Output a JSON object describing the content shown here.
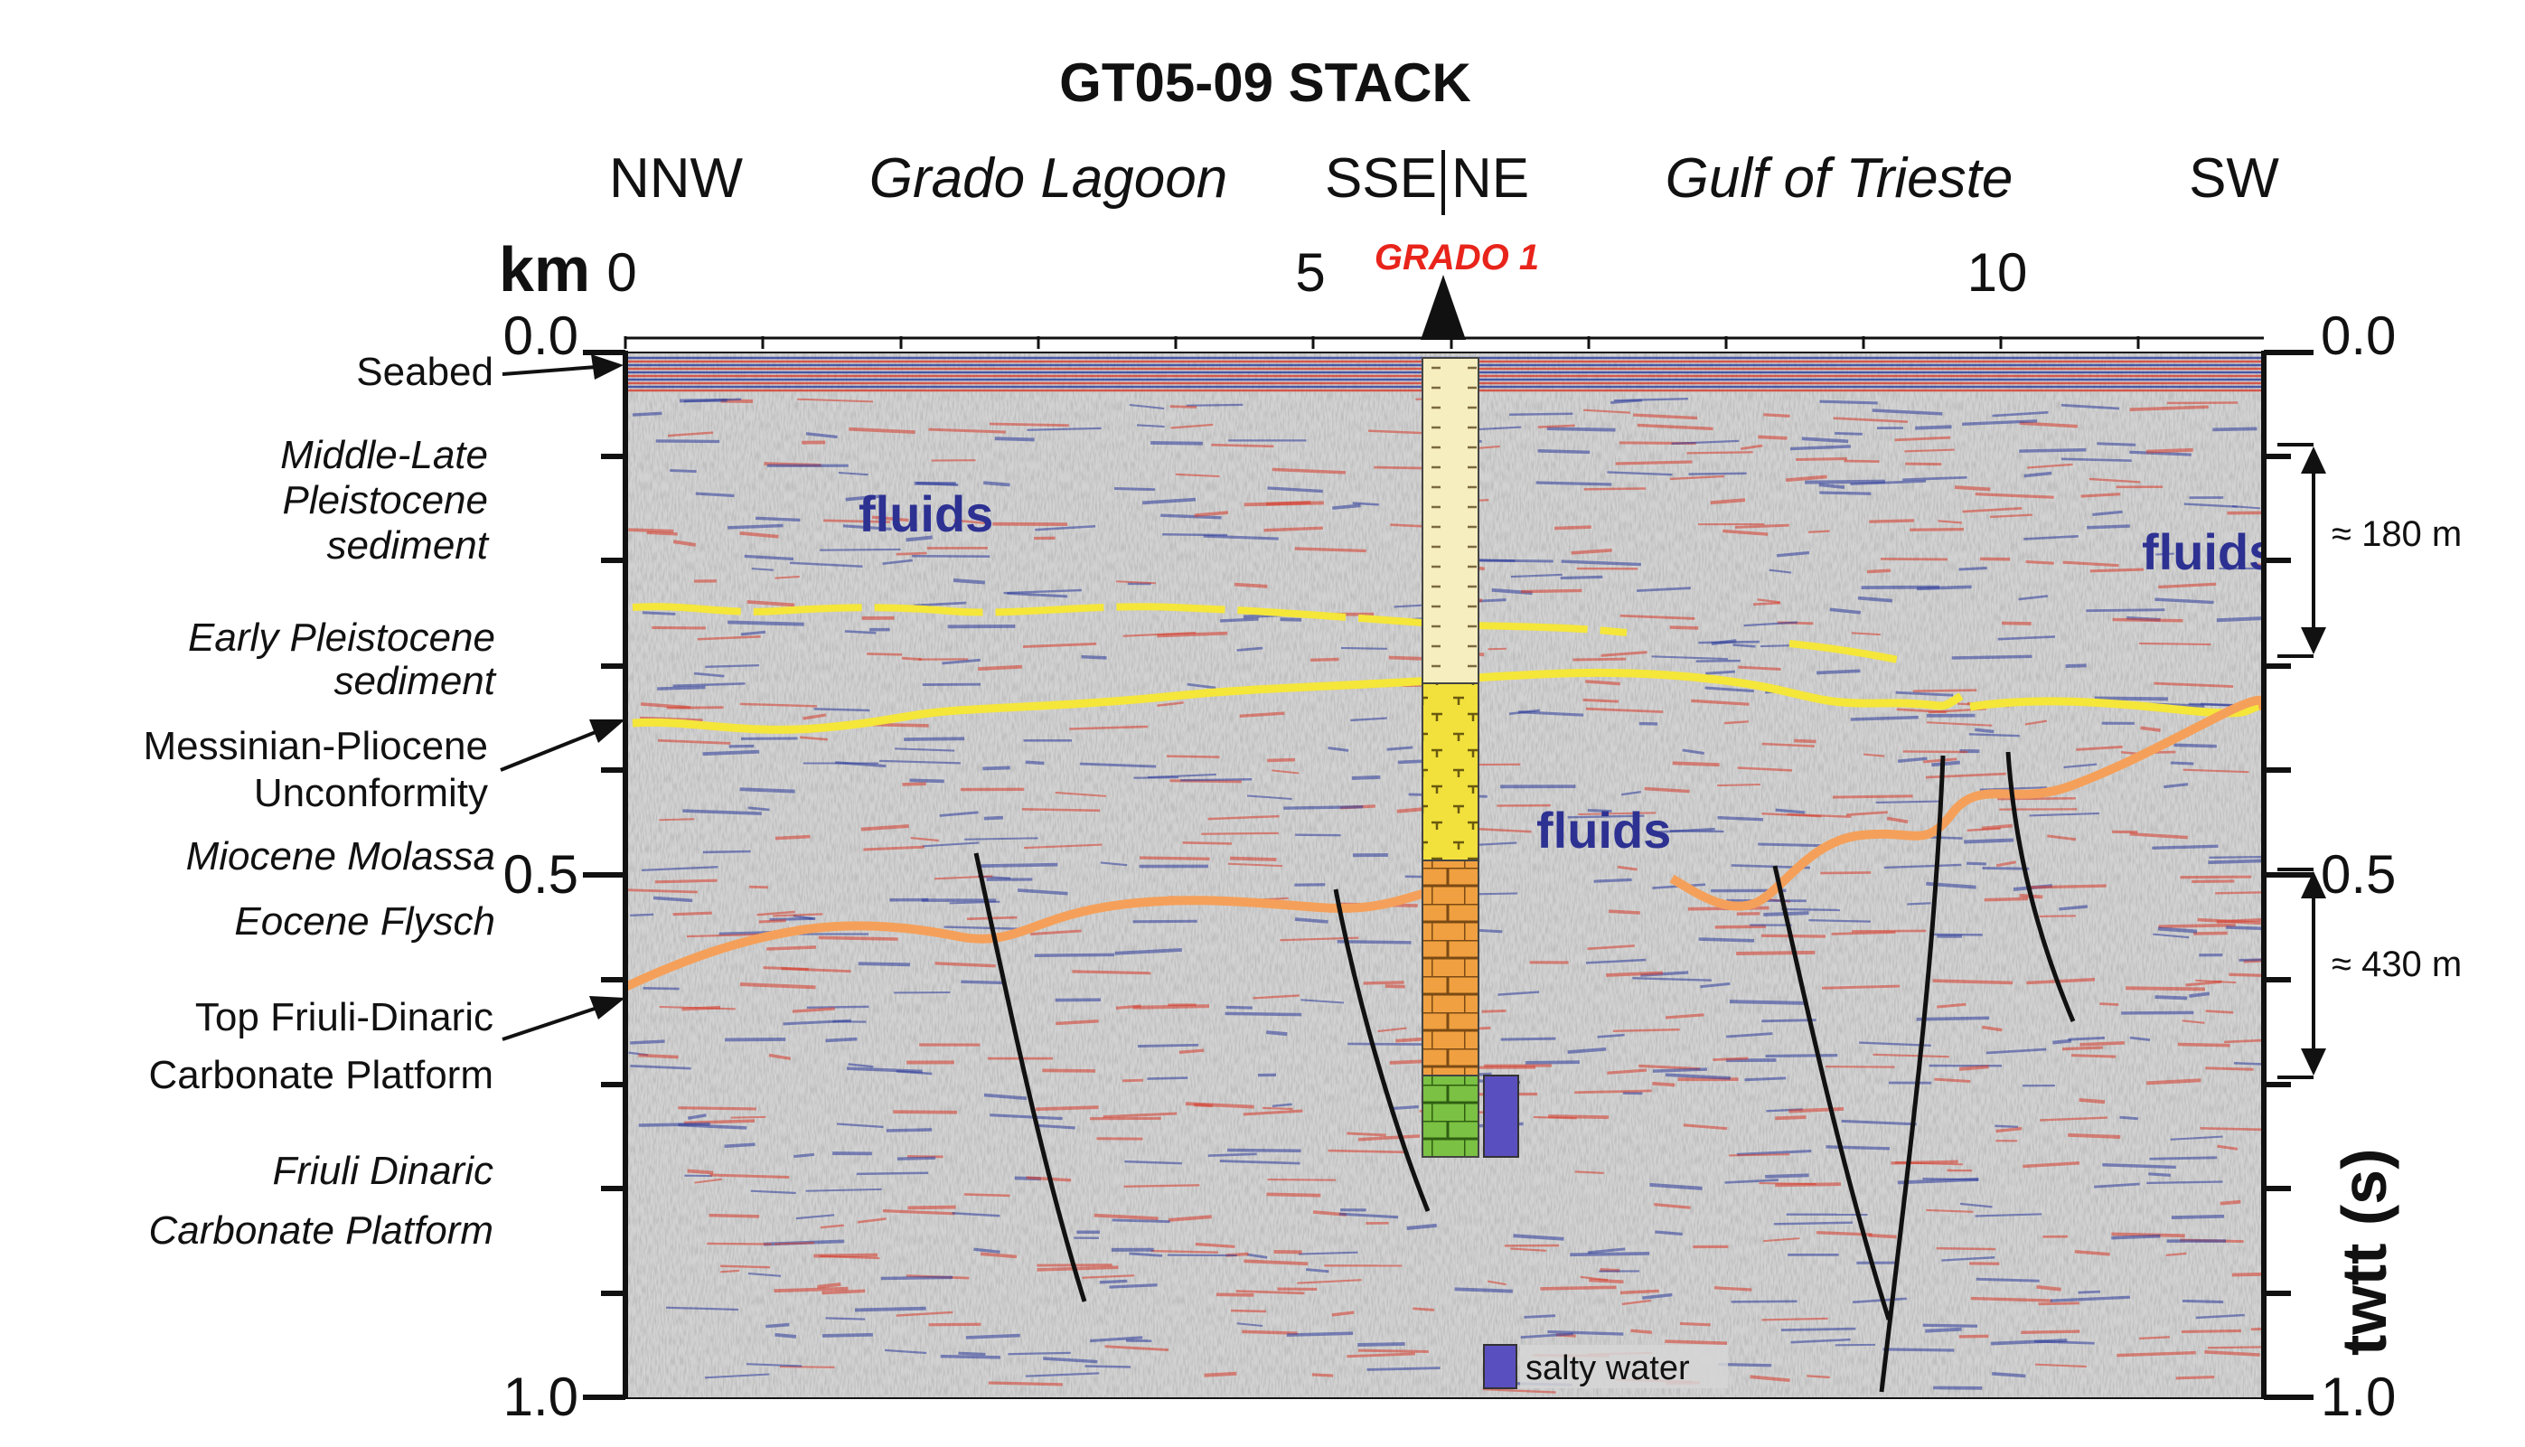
{
  "title": "GT05-09 STACK",
  "directions": {
    "left": "NNW",
    "middle_left": "SSE",
    "middle_right": "NE",
    "right": "SW"
  },
  "regions": {
    "left": "Grado Lagoon",
    "right": "Gulf of Trieste"
  },
  "well": {
    "name": "GRADO 1"
  },
  "distance_axis": {
    "unit": "km",
    "ticks": [
      "0",
      "5",
      "10"
    ]
  },
  "time_axis": {
    "label": "twtt (s)",
    "ticks": [
      "0.0",
      "0.5",
      "1.0"
    ]
  },
  "left_labels": {
    "seabed": "Seabed",
    "middle_late_1": "Middle-Late",
    "middle_late_2": "Pleistocene",
    "middle_late_3": "sediment",
    "early_1": "Early Pleistocene",
    "early_2": "sediment",
    "messinian_1": "Messinian-Pliocene",
    "messinian_2": "Unconformity",
    "miocene": "Miocene Molassa",
    "eocene": "Eocene Flysch",
    "top_friuli_1": "Top Friuli-Dinaric",
    "top_friuli_2": "Carbonate Platform",
    "friuli_1": "Friuli Dinaric",
    "friuli_2": "Carbonate Platform"
  },
  "annotations": {
    "fluids_1": "fluids",
    "fluids_2": "fluids",
    "fluids_3": "fluids"
  },
  "thickness": {
    "upper": "≈ 180 m",
    "lower": "≈ 430 m"
  },
  "legend": {
    "salty_water": "salty water"
  },
  "colors": {
    "background_section": "#d4d4d4",
    "reflector_red": "#d63a2a",
    "reflector_blue": "#2b3a9b",
    "horizon_yellow": "#f5e63a",
    "horizon_orange": "#f5a05a",
    "fault": "#111111",
    "well_sand": "#f7eec0",
    "well_yellow": "#f2e13c",
    "well_orange": "#f0a040",
    "well_green": "#7bc143",
    "salty_water": "#5a4fbf",
    "well_label": "#e8241b",
    "fluids_text": "#2d3192"
  }
}
